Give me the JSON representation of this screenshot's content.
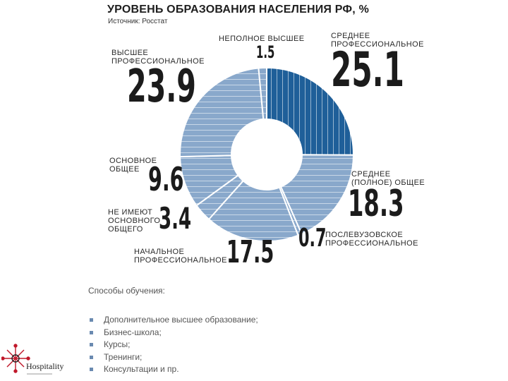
{
  "header": {
    "title": "УРОВЕНЬ ОБРАЗОВАНИЯ НАСЕЛЕНИЯ РФ, %",
    "source": "Источник: Росстат"
  },
  "colors": {
    "highlight": "#1f5f99",
    "base": "#89a8cb",
    "stripe": "#ffffff"
  },
  "chart_data": {
    "type": "pie",
    "title": "УРОВЕНЬ ОБРАЗОВАНИЯ НАСЕЛЕНИЯ РФ, %",
    "donut": true,
    "slices": [
      {
        "name": "СРЕДНЕЕ\nПРОФЕССИОНАЛЬНОЕ",
        "value": 25.1,
        "display": "25.1",
        "highlight": true
      },
      {
        "name": "СРЕДНЕЕ\n(ПОЛНОЕ) ОБЩЕЕ",
        "value": 18.3,
        "display": "18.3",
        "highlight": false
      },
      {
        "name": "ПОСЛЕВУЗОВСКОЕ\nПРОФЕССИОНАЛЬНОЕ",
        "value": 0.7,
        "display": "0.7",
        "highlight": false
      },
      {
        "name": "НАЧАЛЬНОЕ\nПРОФЕССИОНАЛЬНОЕ",
        "value": 17.5,
        "display": "17.5",
        "highlight": false
      },
      {
        "name": "НЕ ИМЕЮТ\nОСНОВНОГО\nОБЩЕГО",
        "value": 3.4,
        "display": "3.4",
        "highlight": false
      },
      {
        "name": "ОСНОВНОЕ\nОБЩЕЕ",
        "value": 9.6,
        "display": "9.6",
        "highlight": false
      },
      {
        "name": "ВЫСШЕЕ\nПРОФЕССИОНАЛЬНОЕ",
        "value": 23.9,
        "display": "23.9",
        "highlight": false
      },
      {
        "name": "НЕПОЛНОЕ ВЫСШЕЕ",
        "value": 1.5,
        "display": "1.5",
        "highlight": false
      }
    ]
  },
  "methods": {
    "title": "Способы обучения:",
    "items": [
      "Дополнительное высшее образование;",
      "Бизнес-школа;",
      "Курсы;",
      "Тренинги;",
      "Консультации и пр."
    ]
  },
  "logo": {
    "text": "Hospitality"
  }
}
